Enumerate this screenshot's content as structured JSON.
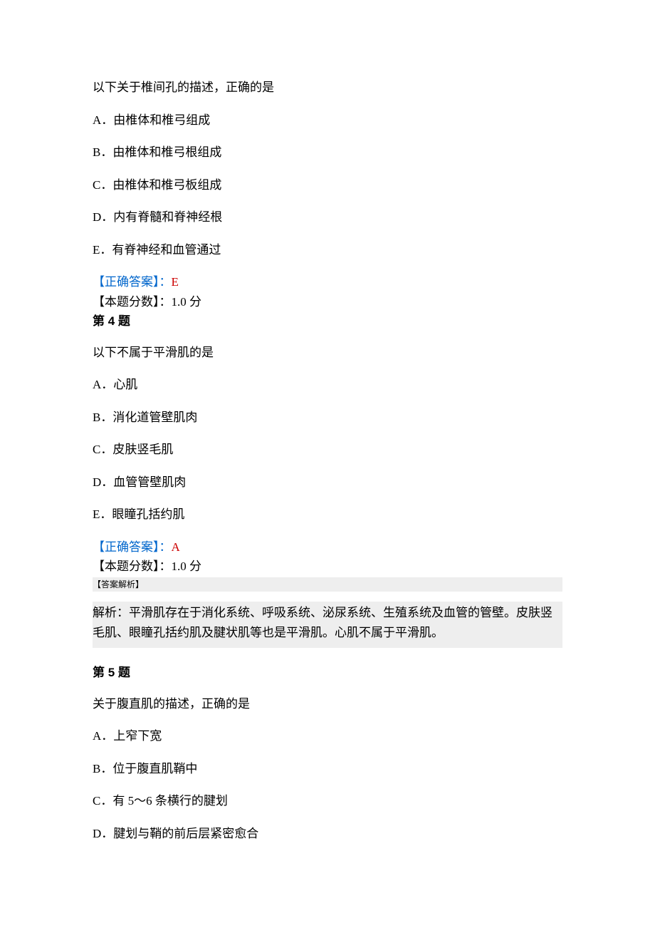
{
  "q3": {
    "stem": "以下关于椎间孔的描述，正确的是",
    "options": {
      "A": "A．由椎体和椎弓组成",
      "B": "B．由椎体和椎弓根组成",
      "C": "C．由椎体和椎弓板组成",
      "D": "D．内有脊髓和脊神经根",
      "E": "E．有脊神经和血管通过"
    },
    "answer_label": "【正确答案】：",
    "answer_value": "E",
    "score_line": "【本题分数】：1.0 分"
  },
  "q4": {
    "heading": "第 4 题",
    "stem": "以下不属于平滑肌的是",
    "options": {
      "A": "A．心肌",
      "B": "B．消化道管壁肌肉",
      "C": "C．皮肤竖毛肌",
      "D": "D．血管管壁肌肉",
      "E": "E．眼瞳孔括约肌"
    },
    "answer_label": "【正确答案】：",
    "answer_value": "A",
    "score_line": "【本题分数】：1.0 分",
    "analysis_label": "【答案解析】",
    "analysis_body": "解析：平滑肌存在于消化系统、呼吸系统、泌尿系统、生殖系统及血管的管壁。皮肤竖毛肌、眼瞳孔括约肌及腱状肌等也是平滑肌。心肌不属于平滑肌。"
  },
  "q5": {
    "heading": "第 5 题",
    "stem": "关于腹直肌的描述，正确的是",
    "options": {
      "A": "A．上窄下宽",
      "B": "B．位于腹直肌鞘中",
      "C": "C．有 5～6 条横行的腱划",
      "D": "D．腱划与鞘的前后层紧密愈合"
    }
  }
}
